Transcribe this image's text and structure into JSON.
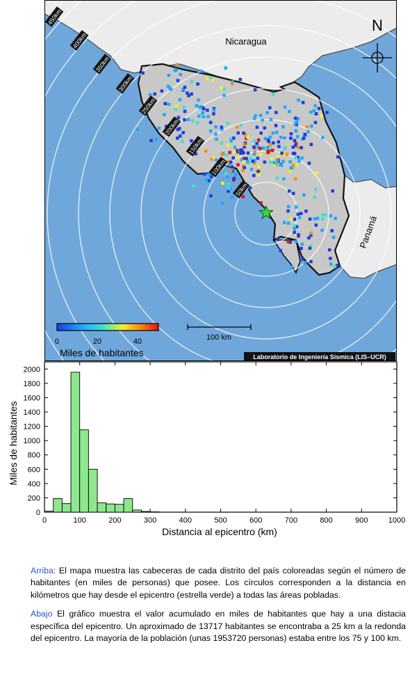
{
  "map": {
    "country_labels": [
      "Nicaragua",
      "Panamá"
    ],
    "north_label": "N",
    "ring_labels": [
      "450km",
      "400km",
      "350km",
      "300km",
      "250km",
      "200km",
      "150km",
      "100km",
      "50km"
    ],
    "scale_bar_label": "100 km",
    "colorbar": {
      "ticks": [
        "0",
        "20",
        "40"
      ],
      "title": "Miles de habitantes",
      "colors": [
        "#1a3de0",
        "#1fa8ff",
        "#3fe0d0",
        "#f2ee30",
        "#ff8a10",
        "#e01010"
      ]
    },
    "credit": "Laboratorio de Ingeniería Sísmica (LIS–UCR)",
    "colors": {
      "ocean": "#6fa7db",
      "land": "#ececec",
      "country": "#c8c8c8",
      "epicenter": "#33dd33"
    }
  },
  "chart_data": {
    "type": "bar",
    "xlabel": "Distancia al epicentro (km)",
    "ylabel": "Miles de habitantes",
    "xlim": [
      0,
      1000
    ],
    "ylim": [
      0,
      2100
    ],
    "xticks": [
      "0",
      "100",
      "200",
      "300",
      "400",
      "500",
      "600",
      "700",
      "800",
      "900",
      "1000"
    ],
    "yticks": [
      "0",
      "200",
      "400",
      "600",
      "800",
      "1000",
      "1200",
      "1400",
      "1600",
      "1800",
      "2000"
    ],
    "bin_width_km": 25,
    "bin_starts": [
      0,
      25,
      50,
      75,
      100,
      125,
      150,
      175,
      200,
      225,
      250,
      275,
      300
    ],
    "values": [
      15,
      190,
      120,
      1955,
      1150,
      600,
      130,
      115,
      110,
      190,
      30,
      10,
      5
    ],
    "bar_color": "#8ee68e"
  },
  "caption": {
    "p1_head": "Arriba:",
    "p1_body": " El mapa muestra las cabeceras de cada distrito del país coloreadas según el número de habitantes (en miles de personas) que posee.  Los círculos corresponden a la distancia en kilómetros que hay desde el epicentro (estrella verde) a todas las áreas pobladas.",
    "p2_head": "Abajo",
    "p2_body": " El gráfico muestra el valor acumulado en miles de habitantes que hay a una distacia específica del epicentro.  Un aproximado de 13717 habitantes se encontraba a 25 km a la redonda del epicentro.  La mayoría de la población (unas 1953720 personas) estaba entre los 75 y 100 km."
  }
}
